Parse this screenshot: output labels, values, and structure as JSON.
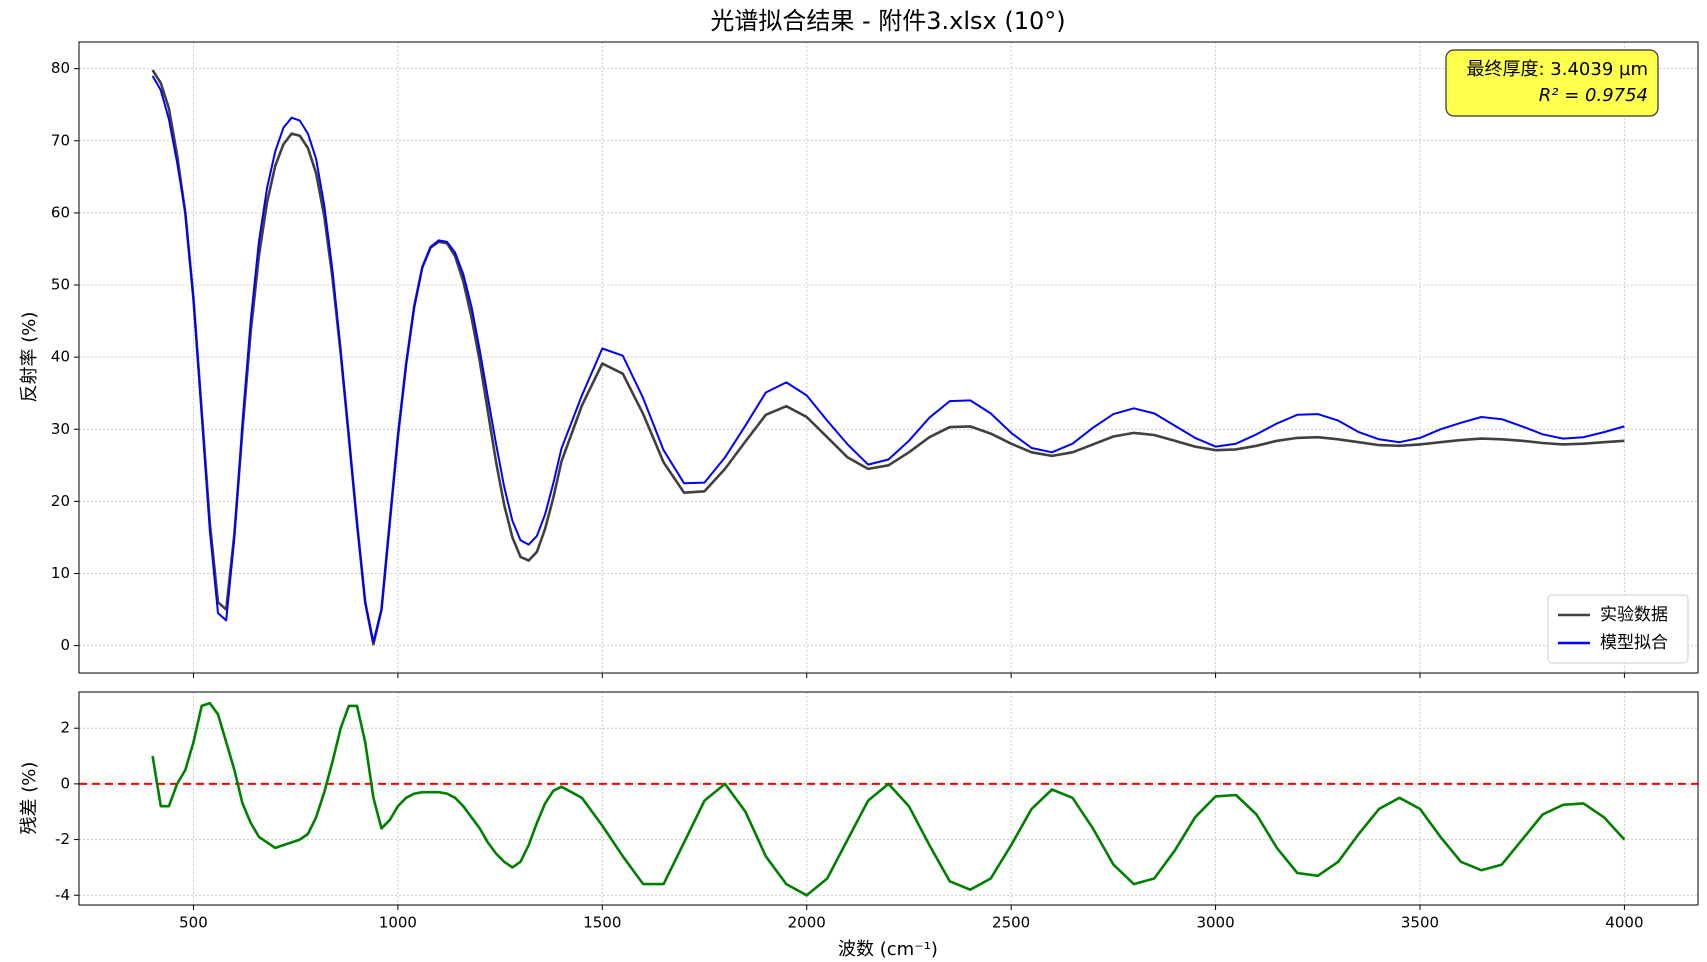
{
  "chart_data": [
    {
      "type": "line",
      "title": "光谱拟合结果 - 附件3.xlsx (10°)",
      "ylabel": "反射率 (%)",
      "x": [
        400,
        420,
        440,
        460,
        480,
        500,
        520,
        540,
        560,
        580,
        600,
        620,
        640,
        660,
        680,
        700,
        720,
        740,
        760,
        780,
        800,
        820,
        840,
        860,
        880,
        900,
        920,
        940,
        960,
        980,
        1000,
        1020,
        1040,
        1060,
        1080,
        1100,
        1120,
        1140,
        1160,
        1180,
        1200,
        1220,
        1240,
        1260,
        1280,
        1300,
        1320,
        1340,
        1360,
        1380,
        1400,
        1450,
        1500,
        1550,
        1600,
        1650,
        1700,
        1750,
        1800,
        1850,
        1900,
        1950,
        2000,
        2050,
        2100,
        2150,
        2200,
        2250,
        2300,
        2350,
        2400,
        2450,
        2500,
        2550,
        2600,
        2650,
        2700,
        2750,
        2800,
        2850,
        2900,
        2950,
        3000,
        3050,
        3100,
        3150,
        3200,
        3250,
        3300,
        3350,
        3400,
        3450,
        3500,
        3550,
        3600,
        3650,
        3700,
        3750,
        3800,
        3850,
        3900,
        3950,
        4000
      ],
      "series": [
        {
          "name": "实验数据",
          "color": "#404040",
          "values": [
            79.8,
            78.0,
            74.5,
            68,
            60,
            48,
            32.5,
            17,
            6,
            5,
            15.5,
            30,
            43.5,
            54,
            61.5,
            66.5,
            69.5,
            71,
            70.7,
            69,
            65.5,
            59.5,
            51,
            40.5,
            29,
            17,
            6,
            0.2,
            5,
            17,
            29,
            39,
            47,
            52.5,
            55.2,
            56,
            55.8,
            54,
            50.5,
            45.5,
            39.5,
            32.5,
            25.5,
            19.5,
            15,
            12.3,
            11.8,
            13,
            16.2,
            20.5,
            25.5,
            33.3,
            39.1,
            37.7,
            32.1,
            25.4,
            21.2,
            21.4,
            24.5,
            28.3,
            32.0,
            33.2,
            31.7,
            28.9,
            26.1,
            24.5,
            25.0,
            26.8,
            28.9,
            30.3,
            30.4,
            29.4,
            28.0,
            26.8,
            26.3,
            26.8,
            27.9,
            29.0,
            29.5,
            29.2,
            28.4,
            27.6,
            27.1,
            27.2,
            27.7,
            28.4,
            28.8,
            28.9,
            28.6,
            28.2,
            27.8,
            27.7,
            27.9,
            28.2,
            28.5,
            28.7,
            28.6,
            28.4,
            28.1,
            27.9,
            28.0,
            28.2,
            28.4
          ]
        },
        {
          "name": "模型拟合",
          "color": "#0000ff",
          "values": [
            79,
            77,
            73,
            67,
            60,
            48,
            32,
            16,
            4.5,
            3.5,
            15,
            31,
            45,
            56,
            63.5,
            68.5,
            71.8,
            73.2,
            72.8,
            71,
            67.5,
            61,
            52,
            41,
            29,
            17,
            6,
            0.5,
            5,
            17,
            29,
            39,
            47,
            52.5,
            55.3,
            56.2,
            56,
            54.5,
            51.5,
            47,
            41,
            34.5,
            28,
            22,
            17.3,
            14.6,
            14,
            15.2,
            18.2,
            22.5,
            27.3,
            34.7,
            41.2,
            40.2,
            34.3,
            27.1,
            22.5,
            22.6,
            26.1,
            30.5,
            35.1,
            36.5,
            34.7,
            31.2,
            27.9,
            25.1,
            25.8,
            28.4,
            31.6,
            33.9,
            34.0,
            32.2,
            29.5,
            27.4,
            26.8,
            28.0,
            30.2,
            32.1,
            32.9,
            32.2,
            30.5,
            28.8,
            27.6,
            28.0,
            29.3,
            30.8,
            32.0,
            32.1,
            31.2,
            29.6,
            28.6,
            28.2,
            28.8,
            30.0,
            30.9,
            31.7,
            31.4,
            30.4,
            29.3,
            28.7,
            28.9,
            29.6,
            30.4
          ]
        }
      ],
      "ylim": [
        -3.8,
        83.7
      ],
      "yticks": [
        0,
        10,
        20,
        30,
        40,
        50,
        60,
        70,
        80
      ],
      "grid": true,
      "legend": "lower right",
      "annotation": [
        "最终厚度: 3.4039 µm",
        "R² = 0.9754"
      ],
      "annotation_color": "#ffff4d"
    },
    {
      "type": "line",
      "xlabel": "波数 (cm⁻¹)",
      "ylabel": "残差 (%)",
      "x": [
        400,
        420,
        440,
        460,
        480,
        500,
        520,
        540,
        560,
        580,
        600,
        620,
        640,
        660,
        680,
        700,
        720,
        740,
        760,
        780,
        800,
        820,
        840,
        860,
        880,
        900,
        920,
        940,
        960,
        980,
        1000,
        1020,
        1040,
        1060,
        1080,
        1100,
        1120,
        1140,
        1160,
        1180,
        1200,
        1220,
        1240,
        1260,
        1280,
        1300,
        1320,
        1340,
        1360,
        1380,
        1400,
        1450,
        1500,
        1550,
        1600,
        1650,
        1700,
        1750,
        1800,
        1850,
        1900,
        1950,
        2000,
        2050,
        2100,
        2150,
        2200,
        2250,
        2300,
        2350,
        2400,
        2450,
        2500,
        2550,
        2600,
        2650,
        2700,
        2750,
        2800,
        2850,
        2900,
        2950,
        3000,
        3050,
        3100,
        3150,
        3200,
        3250,
        3300,
        3350,
        3400,
        3450,
        3500,
        3550,
        3600,
        3650,
        3700,
        3750,
        3800,
        3850,
        3900,
        3950,
        4000
      ],
      "series": [
        {
          "color": "#008000",
          "values": [
            1.0,
            -0.8,
            -0.8,
            0,
            0.5,
            1.5,
            2.8,
            2.9,
            2.5,
            1.5,
            0.5,
            -0.7,
            -1.4,
            -1.9,
            -2.1,
            -2.3,
            -2.2,
            -2.1,
            -2.0,
            -1.8,
            -1.2,
            -0.3,
            0.8,
            2.0,
            2.8,
            2.8,
            1.5,
            -0.5,
            -1.6,
            -1.3,
            -0.8,
            -0.5,
            -0.35,
            -0.3,
            -0.3,
            -0.3,
            -0.35,
            -0.5,
            -0.8,
            -1.2,
            -1.6,
            -2.1,
            -2.5,
            -2.8,
            -3.0,
            -2.8,
            -2.2,
            -1.4,
            -0.7,
            -0.25,
            -0.1,
            -0.5,
            -1.5,
            -2.6,
            -3.6,
            -3.6,
            -2.1,
            -0.6,
            0.0,
            -1.0,
            -2.6,
            -3.6,
            -4.0,
            -3.4,
            -2.0,
            -0.6,
            0.0,
            -0.8,
            -2.2,
            -3.5,
            -3.8,
            -3.4,
            -2.2,
            -0.9,
            -0.2,
            -0.5,
            -1.6,
            -2.9,
            -3.6,
            -3.4,
            -2.4,
            -1.2,
            -0.45,
            -0.4,
            -1.1,
            -2.3,
            -3.2,
            -3.3,
            -2.8,
            -1.8,
            -0.9,
            -0.5,
            -0.9,
            -1.9,
            -2.8,
            -3.1,
            -2.9,
            -2.0,
            -1.1,
            -0.75,
            -0.7,
            -1.2,
            -2.0
          ]
        }
      ],
      "reference_line": {
        "y": 0,
        "color": "#ff0000"
      },
      "xlim": [
        220,
        4180
      ],
      "xticks": [
        500,
        1000,
        1500,
        2000,
        2500,
        3000,
        3500,
        4000
      ],
      "ylim": [
        -4.35,
        3.3
      ],
      "yticks": [
        -4,
        -2,
        0,
        2
      ],
      "grid": true
    }
  ]
}
